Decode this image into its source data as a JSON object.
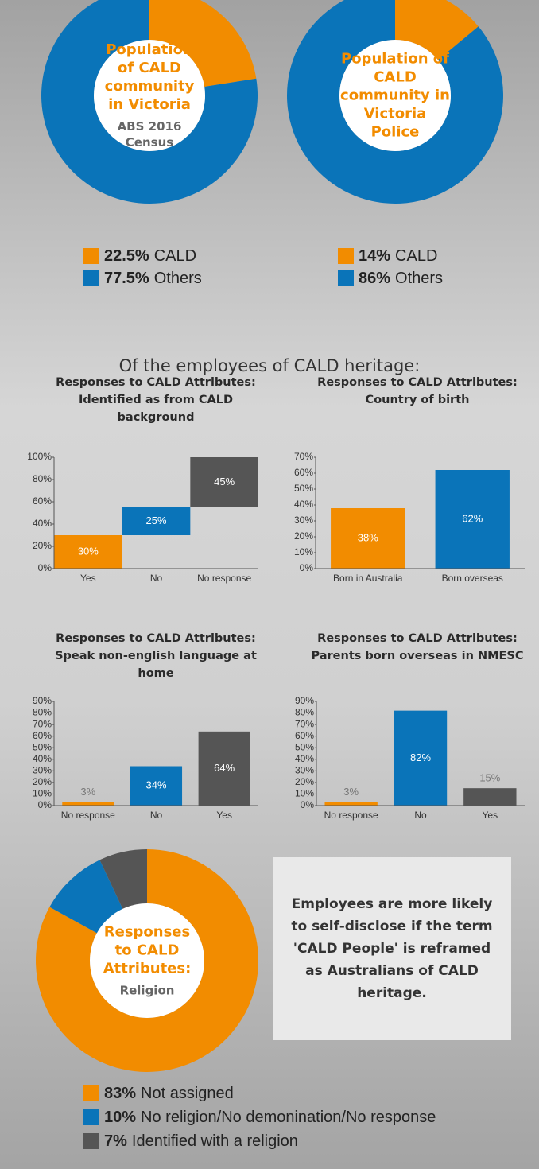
{
  "heading": "Of the employees of CALD heritage:",
  "callout": "Employees are more likely to self-disclose if the term 'CALD People' is reframed as Australians of CALD heritage.",
  "chart_data": [
    {
      "type": "donut",
      "title": "Population of CALD community in Victoria",
      "subtitle": "ABS 2016 Census",
      "categories": [
        "CALD",
        "Others"
      ],
      "values": [
        22.5,
        77.5
      ],
      "value_labels": [
        "22.5%",
        "77.5%"
      ],
      "colors": [
        "#f28c00",
        "#0a74b9"
      ]
    },
    {
      "type": "donut",
      "title": "Population of CALD community in Victoria Police",
      "categories": [
        "CALD",
        "Others"
      ],
      "values": [
        14,
        86
      ],
      "value_labels": [
        "14%",
        "86%"
      ],
      "colors": [
        "#f28c00",
        "#0a74b9"
      ]
    },
    {
      "type": "waterfall",
      "title": "Responses to CALD Attributes: Identified as from CALD background",
      "categories": [
        "Yes",
        "No",
        "No response"
      ],
      "values": [
        30,
        25,
        45
      ],
      "value_labels": [
        "30%",
        "25%",
        "45%"
      ],
      "colors": [
        "#f28c00",
        "#0a74b9",
        "#555555"
      ],
      "ylim": [
        0,
        100
      ],
      "yticks": [
        {
          "value": 0,
          "label": "0%"
        },
        {
          "value": 20,
          "label": "20%"
        },
        {
          "value": 40,
          "label": "40%"
        },
        {
          "value": 60,
          "label": "60%"
        },
        {
          "value": 80,
          "label": "80%"
        },
        {
          "value": 100,
          "label": "100%"
        }
      ]
    },
    {
      "type": "bar",
      "title": "Responses to CALD Attributes: Country of birth",
      "categories": [
        "Born in Australia",
        "Born overseas"
      ],
      "values": [
        38,
        62
      ],
      "value_labels": [
        "38%",
        "62%"
      ],
      "colors": [
        "#f28c00",
        "#0a74b9"
      ],
      "ylim": [
        0,
        70
      ],
      "yticks": [
        {
          "value": 0,
          "label": "0%"
        },
        {
          "value": 10,
          "label": "10%"
        },
        {
          "value": 20,
          "label": "20%"
        },
        {
          "value": 30,
          "label": "30%"
        },
        {
          "value": 40,
          "label": "40%"
        },
        {
          "value": 50,
          "label": "50%"
        },
        {
          "value": 60,
          "label": "60%"
        },
        {
          "value": 70,
          "label": "70%"
        }
      ]
    },
    {
      "type": "bar",
      "title": "Responses to CALD Attributes: Speak non-english language at home",
      "categories": [
        "No response",
        "No",
        "Yes"
      ],
      "values": [
        3,
        34,
        64
      ],
      "value_labels": [
        "3%",
        "34%",
        "64%"
      ],
      "colors": [
        "#f28c00",
        "#0a74b9",
        "#555555"
      ],
      "ylim": [
        0,
        90
      ],
      "yticks": [
        {
          "value": 0,
          "label": "0%"
        },
        {
          "value": 10,
          "label": "10%"
        },
        {
          "value": 20,
          "label": "20%"
        },
        {
          "value": 30,
          "label": "30%"
        },
        {
          "value": 40,
          "label": "40%"
        },
        {
          "value": 50,
          "label": "50%"
        },
        {
          "value": 60,
          "label": "60%"
        },
        {
          "value": 70,
          "label": "70%"
        },
        {
          "value": 80,
          "label": "80%"
        },
        {
          "value": 90,
          "label": "90%"
        }
      ]
    },
    {
      "type": "bar",
      "title": "Responses to CALD Attributes: Parents born overseas in NMESC",
      "categories": [
        "No response",
        "No",
        "Yes"
      ],
      "values": [
        3,
        82,
        15
      ],
      "value_labels": [
        "3%",
        "82%",
        "15%"
      ],
      "colors": [
        "#f28c00",
        "#0a74b9",
        "#555555"
      ],
      "ylim": [
        0,
        90
      ],
      "yticks": [
        {
          "value": 0,
          "label": "0%"
        },
        {
          "value": 10,
          "label": "10%"
        },
        {
          "value": 20,
          "label": "20%"
        },
        {
          "value": 30,
          "label": "30%"
        },
        {
          "value": 40,
          "label": "40%"
        },
        {
          "value": 50,
          "label": "50%"
        },
        {
          "value": 60,
          "label": "60%"
        },
        {
          "value": 70,
          "label": "70%"
        },
        {
          "value": 80,
          "label": "80%"
        },
        {
          "value": 90,
          "label": "90%"
        }
      ]
    },
    {
      "type": "donut",
      "title": "Responses to CALD Attributes:",
      "subtitle": "Religion",
      "categories": [
        "Not assigned",
        "No religion/No demonination/No response",
        "Identified with a religion"
      ],
      "values": [
        83,
        10,
        7
      ],
      "value_labels": [
        "83%",
        "10%",
        "7%"
      ],
      "colors": [
        "#f28c00",
        "#0a74b9",
        "#555555"
      ]
    }
  ]
}
